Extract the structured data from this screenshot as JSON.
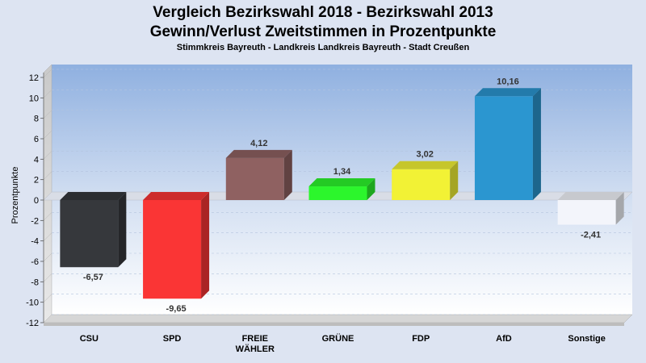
{
  "chart_data": {
    "type": "bar",
    "title_lines": [
      "Vergleich Bezirkswahl 2018 - Bezirkswahl 2013",
      "Gewinn/Verlust Zweitstimmen in Prozentpunkte"
    ],
    "subtitle": "Stimmkreis Bayreuth - Landkreis Landkreis Bayreuth - Stadt Creußen",
    "ylabel": "Prozentpunkte",
    "ylim": [
      -12,
      12
    ],
    "yticks": [
      12,
      10,
      8,
      6,
      4,
      2,
      0,
      -2,
      -4,
      -6,
      -8,
      -10,
      -12
    ],
    "categories": [
      [
        "CSU"
      ],
      [
        "SPD"
      ],
      [
        "FREIE",
        "WÄHLER"
      ],
      [
        "GRÜNE"
      ],
      [
        "FDP"
      ],
      [
        "AfD"
      ],
      [
        "Sonstige"
      ]
    ],
    "values": [
      -6.57,
      -9.65,
      4.12,
      1.34,
      3.02,
      10.16,
      -2.41
    ],
    "value_labels": [
      "-6,57",
      "-9,65",
      "4,12",
      "1,34",
      "3,02",
      "10,16",
      "-2,41"
    ],
    "colors": [
      "#36383c",
      "#fa3535",
      "#8f6161",
      "#2cf62c",
      "#f2f235",
      "#2b96d0",
      "#f3f5fb"
    ],
    "grid": true,
    "legend": "none"
  }
}
